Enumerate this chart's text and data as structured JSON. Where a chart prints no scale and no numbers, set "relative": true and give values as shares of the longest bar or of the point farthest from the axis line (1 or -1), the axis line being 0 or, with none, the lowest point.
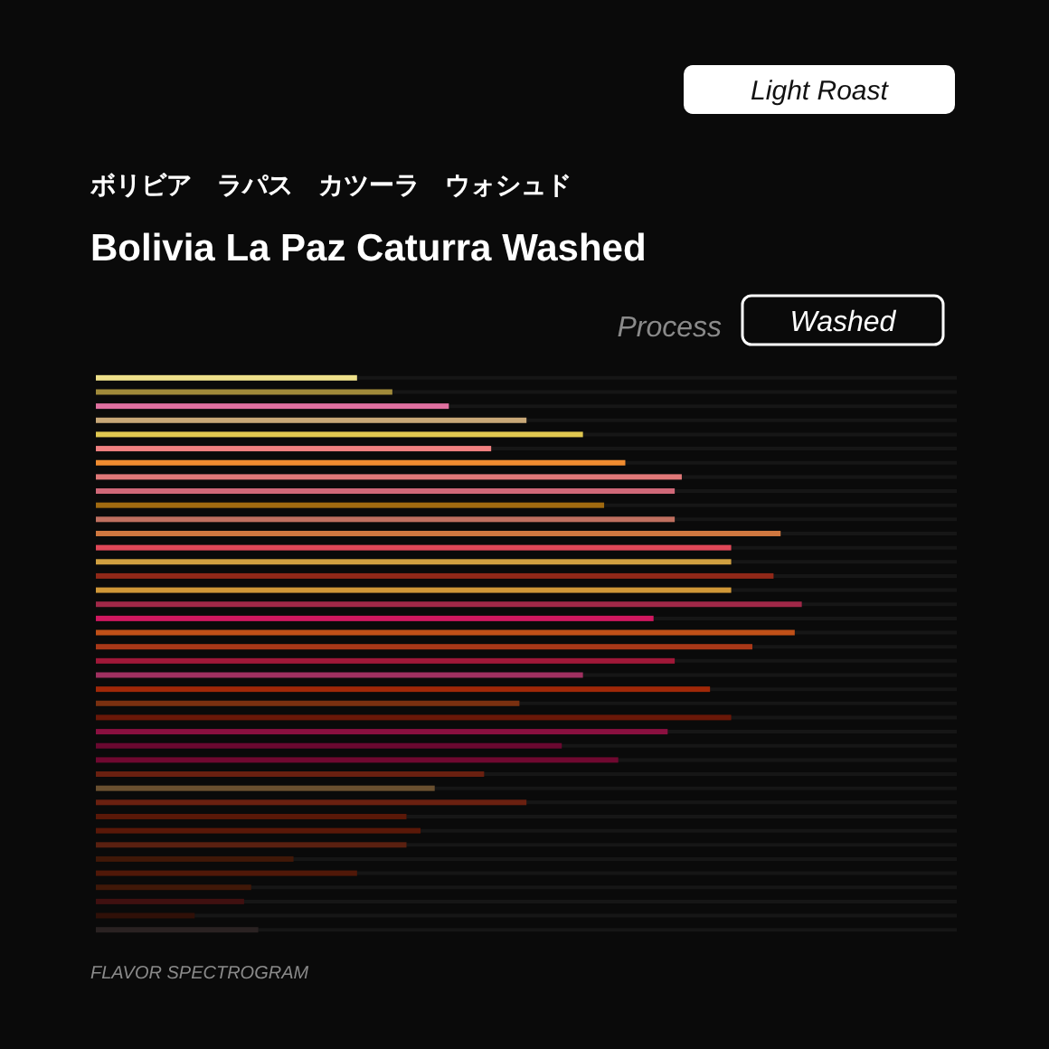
{
  "chart_data": {
    "type": "bar",
    "orientation": "horizontal",
    "relative": true,
    "title": "Bolivia La Paz Caturra Washed",
    "subtitle": "ボリビア　ラパス　カツーラ　ウォシュド",
    "annotations": [
      "Light Roast",
      "Process",
      "Washed",
      "FLAVOR SPECTROGRAM"
    ],
    "categories": [
      null,
      null,
      null,
      null,
      null,
      null,
      null,
      null,
      null,
      null,
      null,
      null,
      null,
      null,
      null,
      null,
      null,
      null,
      null,
      null,
      null,
      null,
      null,
      null,
      null,
      null,
      null,
      null,
      null,
      null,
      null,
      null,
      null,
      null,
      null,
      null,
      null,
      null,
      null,
      null
    ],
    "values": [
      0.37,
      0.42,
      0.5,
      0.61,
      0.69,
      0.56,
      0.75,
      0.83,
      0.82,
      0.72,
      0.82,
      0.97,
      0.9,
      0.9,
      0.96,
      0.9,
      1,
      0.79,
      0.99,
      0.93,
      0.82,
      0.69,
      0.87,
      0.6,
      0.9,
      0.81,
      0.66,
      0.74,
      0.55,
      0.48,
      0.61,
      0.44,
      0.46,
      0.44,
      0.28,
      0.37,
      0.22,
      0.21,
      0.14,
      0.23
    ],
    "colors": [
      "#eee08a",
      "#a08a3a",
      "#e070a0",
      "#c8a878",
      "#e0c850",
      "#f08080",
      "#f08c30",
      "#e07878",
      "#d06878",
      "#a06a10",
      "#c07060",
      "#d07840",
      "#e04858",
      "#d0a040",
      "#902818",
      "#d09838",
      "#a02848",
      "#d01860",
      "#c05018",
      "#a83818",
      "#a01838",
      "#a03060",
      "#a02808",
      "#7a3010",
      "#6a1808",
      "#8a1040",
      "#6a0830",
      "#700830",
      "#6a2010",
      "#6a5030",
      "#6a2010",
      "#5a1808",
      "#5a1808",
      "#5a2010",
      "#401808",
      "#501808",
      "#401808",
      "#401010",
      "#301008",
      "#2a2222"
    ],
    "grid": "y"
  }
}
